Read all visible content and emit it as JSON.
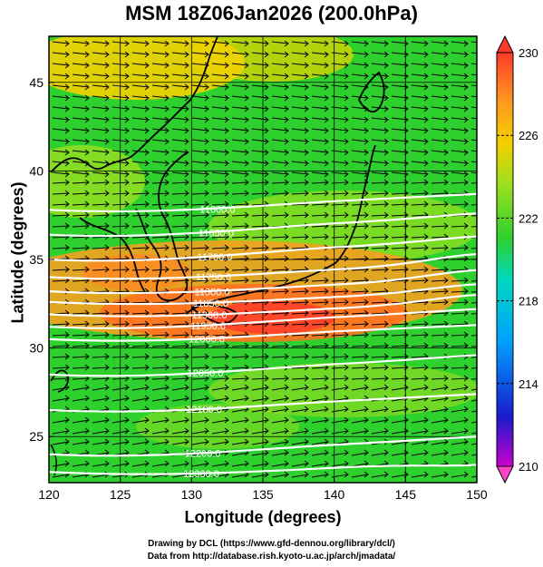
{
  "title": "MSM 18Z06Jan2026 (200.0hPa)",
  "axes": {
    "xlabel": "Longitude (degrees)",
    "ylabel": "Latitude  (degrees)",
    "x_ticks": [
      "120",
      "125",
      "130",
      "135",
      "140",
      "145",
      "150"
    ],
    "y_ticks": [
      "25",
      "30",
      "35",
      "40",
      "45"
    ],
    "xlim": [
      120,
      150
    ],
    "ylim": [
      22.4,
      47.6
    ]
  },
  "colorbar": {
    "ticks": [
      "210",
      "214",
      "218",
      "222",
      "226",
      "230"
    ],
    "range": [
      210,
      230
    ],
    "colors": [
      "#cc00cc",
      "#1a1acc",
      "#00a0ff",
      "#00d8c0",
      "#2ed02e",
      "#9be020",
      "#f4d000",
      "#ff9a20",
      "#ff3a2a"
    ]
  },
  "contours": [
    {
      "label": "11600.0",
      "lat_west": 37.8,
      "lat_east": 38.7
    },
    {
      "label": "11650.0",
      "lat_west": 36.4,
      "lat_east": 37.6
    },
    {
      "label": "11700.0",
      "lat_west": 35.0,
      "lat_east": 36.3
    },
    {
      "label": "11750.0",
      "lat_west": 34.0,
      "lat_east": 35.3
    },
    {
      "label": "11800.0",
      "lat_west": 33.2,
      "lat_east": 34.4
    },
    {
      "label": "11850.0",
      "lat_west": 32.6,
      "lat_east": 33.6
    },
    {
      "label": "11900.0",
      "lat_west": 31.9,
      "lat_east": 33.0
    },
    {
      "label": "11950.0",
      "lat_west": 31.2,
      "lat_east": 32.2
    },
    {
      "label": "12000.0",
      "lat_west": 30.5,
      "lat_east": 31.3
    },
    {
      "label": "12050.0",
      "lat_west": 28.5,
      "lat_east": 29.6
    },
    {
      "label": "12100.0",
      "lat_west": 26.5,
      "lat_east": 27.4
    },
    {
      "label": "12200.0",
      "lat_west": 24.0,
      "lat_east": 25.0
    },
    {
      "label": "12300.0",
      "lat_west": 23.0,
      "lat_east": 23.4
    }
  ],
  "credits": {
    "line1": "Drawing by DCL (https://www.gfd-dennou.org/library/dcl/)",
    "line2": "Data from http://database.rish.kyoto-u.ac.jp/arch/jmadata/"
  }
}
